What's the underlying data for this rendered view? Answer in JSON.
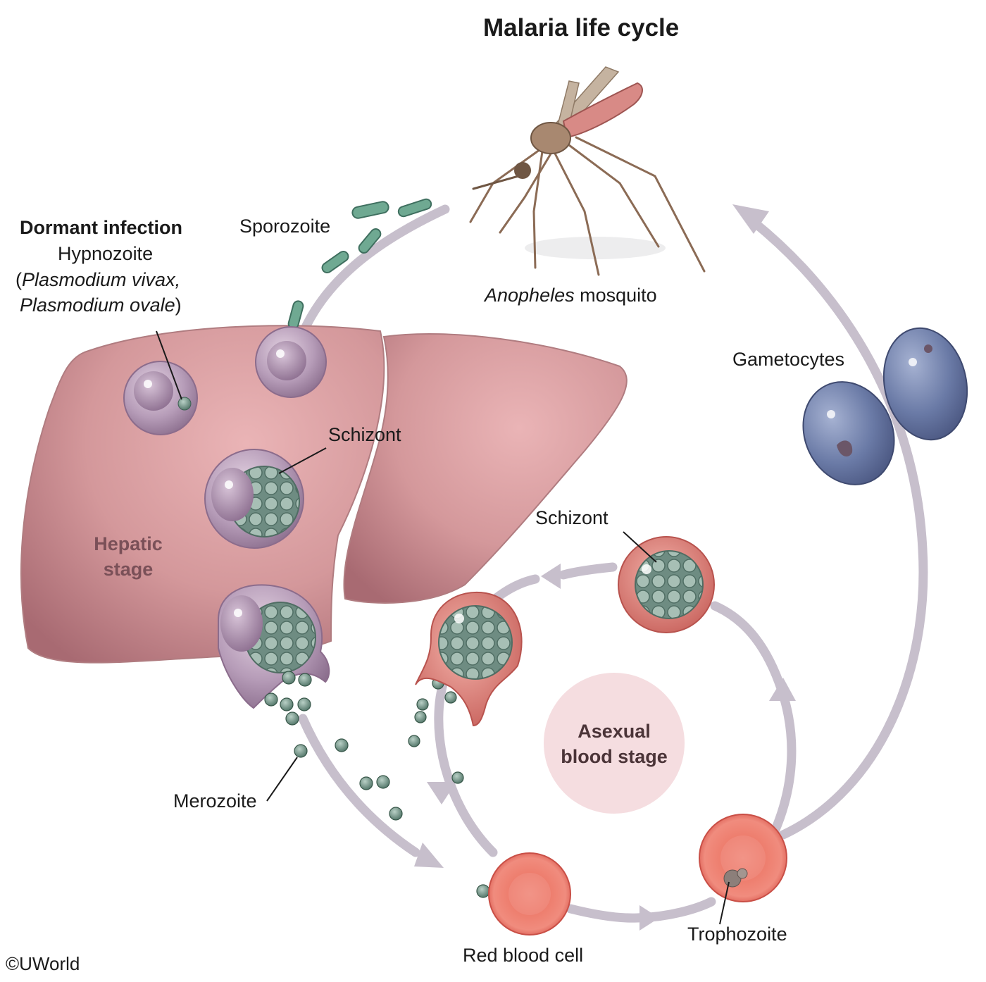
{
  "title": "Malaria life cycle",
  "labels": {
    "dormant_heading": "Dormant infection",
    "hypnozoite": "Hypnozoite",
    "open_paren": "(",
    "plasmodium_vivax": "Plasmodium vivax,",
    "plasmodium_ovale": "Plasmodium ovale",
    "close_paren": ")",
    "sporozoite": "Sporozoite",
    "mosquito_italic": "Anopheles",
    "mosquito_rest": " mosquito",
    "gametocytes": "Gametocytes",
    "schizont_liver": "Schizont",
    "schizont_blood": "Schizont",
    "hepatic_line1": "Hepatic",
    "hepatic_line2": "stage",
    "asexual_line1": "Asexual",
    "asexual_line2": "blood stage",
    "merozoite": "Merozoite",
    "red_blood_cell": "Red blood cell",
    "trophozoite": "Trophozoite",
    "copyright": "©UWorld"
  },
  "colors": {
    "arrow": "#c7bfcc",
    "liver_fill": "#d79a9c",
    "liver_dark": "#b87b80",
    "sporozoite": "#5e9c86",
    "hepatocyte": "#b49ab4",
    "schizont_green": "#7f9d92",
    "rbc": "#ec6a5d",
    "gametocyte": "#5e6f9a",
    "asexual_circle": "#f5dde0"
  }
}
